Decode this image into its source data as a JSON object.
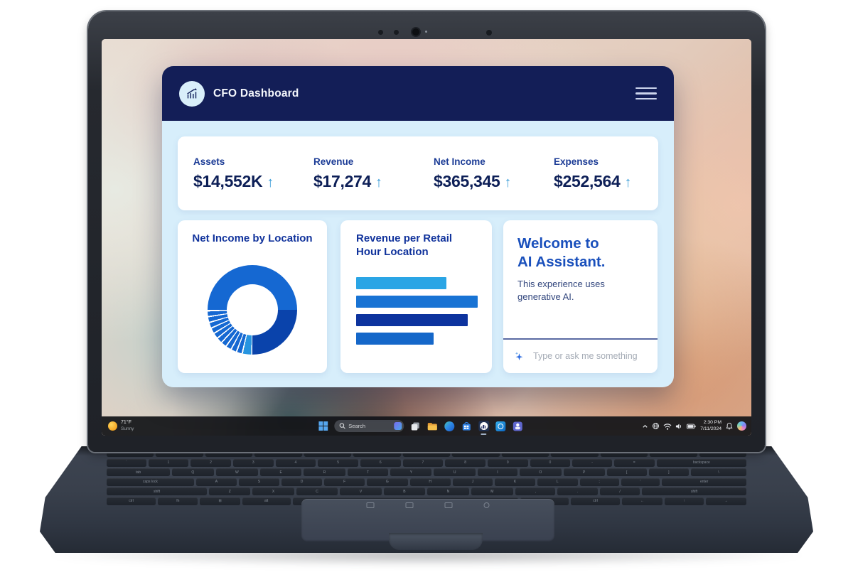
{
  "app_window": {
    "header": {
      "title": "CFO Dashboard",
      "logo_icon": "growth-chart-icon",
      "menu_icon": "hamburger-menu-icon"
    },
    "metrics": [
      {
        "label": "Assets",
        "value": "$14,552K",
        "trend": "up",
        "arrow": "↑"
      },
      {
        "label": "Revenue",
        "value": "$17,274",
        "trend": "up",
        "arrow": "↑"
      },
      {
        "label": "Net Income",
        "value": "$365,345",
        "trend": "up",
        "arrow": "↑"
      },
      {
        "label": "Expenses",
        "value": "$252,564",
        "trend": "up",
        "arrow": "↑"
      }
    ],
    "assistant_card": {
      "title_line1": "Welcome to",
      "title_line2": "AI Assistant.",
      "body": "This experience uses generative AI.",
      "input_placeholder": "Type or ask me something",
      "icon": "sparkle-icon"
    },
    "colors": {
      "header_bg": "#131e57",
      "window_bg": "#d7eefb",
      "card_bg": "#ffffff",
      "metric_label": "#1c3c96",
      "metric_value": "#0d1f57",
      "trend_arrow": "#3d9ed9",
      "chart_title": "#11339c",
      "assistant_title": "#1a50bc"
    }
  },
  "chart_data": [
    {
      "type": "pie",
      "subtype": "donut",
      "title": "Net Income by Location",
      "legend": "none",
      "start_angle_deg": 270,
      "segments": [
        {
          "value": 50,
          "color": "#1568d2"
        },
        {
          "value": 25,
          "color": "#0a43ab"
        },
        {
          "value": 0.4,
          "color": "#ffffff"
        },
        {
          "value": 3.0,
          "color": "#2795e0"
        },
        {
          "value": 0.5,
          "color": "#ffffff"
        },
        {
          "value": 1.6,
          "color": "#1568d2"
        },
        {
          "value": 0.5,
          "color": "#ffffff"
        },
        {
          "value": 1.6,
          "color": "#1568d2"
        },
        {
          "value": 0.5,
          "color": "#ffffff"
        },
        {
          "value": 1.6,
          "color": "#1568d2"
        },
        {
          "value": 0.5,
          "color": "#ffffff"
        },
        {
          "value": 1.6,
          "color": "#1568d2"
        },
        {
          "value": 0.5,
          "color": "#ffffff"
        },
        {
          "value": 1.6,
          "color": "#1568d2"
        },
        {
          "value": 0.5,
          "color": "#ffffff"
        },
        {
          "value": 1.6,
          "color": "#1568d2"
        },
        {
          "value": 0.5,
          "color": "#ffffff"
        },
        {
          "value": 1.6,
          "color": "#1568d2"
        },
        {
          "value": 0.5,
          "color": "#ffffff"
        },
        {
          "value": 1.6,
          "color": "#1568d2"
        },
        {
          "value": 0.5,
          "color": "#ffffff"
        },
        {
          "value": 1.6,
          "color": "#1568d2"
        },
        {
          "value": 0.5,
          "color": "#ffffff"
        },
        {
          "value": 1.6,
          "color": "#1568d2"
        },
        {
          "value": 0.6,
          "color": "#ffffff"
        }
      ]
    },
    {
      "type": "bar",
      "orientation": "horizontal",
      "title": "Revenue per Retail Hour Location",
      "axis_labels": "none",
      "value_unit": "percent-of-longest-bar",
      "bars": [
        {
          "value": 74,
          "color": "#2aa5e5"
        },
        {
          "value": 100,
          "color": "#1873d4"
        },
        {
          "value": 92,
          "color": "#0d339e"
        },
        {
          "value": 64,
          "color": "#1567c9"
        }
      ]
    }
  ],
  "taskbar": {
    "weather": {
      "temp": "71°F",
      "condition": "Sunny",
      "icon": "sun-icon"
    },
    "search": {
      "placeholder": "Search",
      "icon": "search-magnifier-icon",
      "chip_icon": "bing-highlights-icon"
    },
    "start_icon": "windows-start-icon",
    "app_icons": [
      {
        "name": "task-view"
      },
      {
        "name": "file-explorer"
      },
      {
        "name": "edge-browser"
      },
      {
        "name": "microsoft-store"
      },
      {
        "name": "cfo-dashboard-app",
        "active": true
      },
      {
        "name": "outlook"
      },
      {
        "name": "teams"
      }
    ],
    "tray_icons": [
      "chevron-up",
      "network-globe",
      "wifi",
      "volume",
      "battery"
    ],
    "clock": {
      "time": "2:30 PM",
      "date": "7/11/2024"
    },
    "bell_icon": "notification-bell-icon",
    "copilot_icon": "copilot-icon"
  },
  "keyboard": {
    "rows": [
      {
        "h": 7,
        "keys": [
          [
            "",
            1
          ],
          [
            "",
            1
          ],
          [
            "",
            1
          ],
          [
            "",
            1
          ],
          [
            "",
            1
          ],
          [
            "",
            1
          ],
          [
            "",
            1
          ],
          [
            "",
            1
          ],
          [
            "",
            1
          ],
          [
            "",
            1
          ],
          [
            "",
            1
          ],
          [
            "",
            1
          ],
          [
            "",
            1
          ]
        ]
      },
      {
        "h": 11,
        "keys": [
          [
            "`",
            1
          ],
          [
            "1",
            1
          ],
          [
            "2",
            1
          ],
          [
            "3",
            1
          ],
          [
            "4",
            1
          ],
          [
            "5",
            1
          ],
          [
            "6",
            1
          ],
          [
            "7",
            1
          ],
          [
            "8",
            1
          ],
          [
            "9",
            1
          ],
          [
            "0",
            1
          ],
          [
            "-",
            1
          ],
          [
            "=",
            1
          ],
          [
            "backspace",
            1.9
          ]
        ]
      },
      {
        "h": 11,
        "keys": [
          [
            "tab",
            1.5
          ],
          [
            "Q",
            1
          ],
          [
            "W",
            1
          ],
          [
            "E",
            1
          ],
          [
            "R",
            1
          ],
          [
            "T",
            1
          ],
          [
            "Y",
            1
          ],
          [
            "U",
            1
          ],
          [
            "I",
            1
          ],
          [
            "O",
            1
          ],
          [
            "P",
            1
          ],
          [
            "[",
            1
          ],
          [
            "]",
            1
          ],
          [
            "\\",
            1.4
          ]
        ]
      },
      {
        "h": 11,
        "keys": [
          [
            "caps lock",
            1.9
          ],
          [
            "A",
            1
          ],
          [
            "S",
            1
          ],
          [
            "D",
            1
          ],
          [
            "F",
            1
          ],
          [
            "G",
            1
          ],
          [
            "H",
            1
          ],
          [
            "J",
            1
          ],
          [
            "K",
            1
          ],
          [
            "L",
            1
          ],
          [
            ";",
            1
          ],
          [
            "'",
            1
          ],
          [
            "enter",
            2.0
          ]
        ]
      },
      {
        "h": 11,
        "keys": [
          [
            "shift",
            2.4
          ],
          [
            "Z",
            1
          ],
          [
            "X",
            1
          ],
          [
            "C",
            1
          ],
          [
            "V",
            1
          ],
          [
            "B",
            1
          ],
          [
            "N",
            1
          ],
          [
            "M",
            1
          ],
          [
            ",",
            1
          ],
          [
            ".",
            1
          ],
          [
            "/",
            1
          ],
          [
            "shift",
            2.5
          ]
        ]
      },
      {
        "h": 11,
        "keys": [
          [
            "ctrl",
            1.2
          ],
          [
            "fn",
            1
          ],
          [
            "⊞",
            1
          ],
          [
            "alt",
            1.2
          ],
          [
            "",
            6.1
          ],
          [
            "alt",
            1.2
          ],
          [
            "ctrl",
            1.2
          ],
          [
            "←",
            1
          ],
          [
            "↑",
            1
          ],
          [
            "→",
            1
          ]
        ]
      }
    ]
  }
}
